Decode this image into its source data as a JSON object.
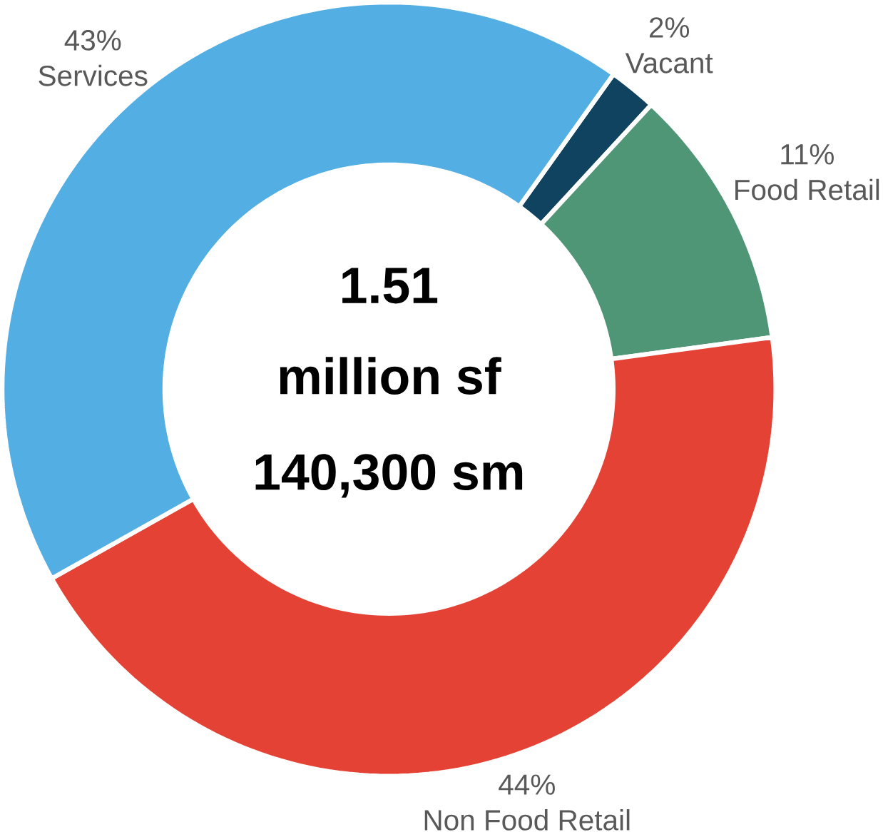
{
  "chart_data": {
    "type": "donut",
    "categories": [
      "Vacant",
      "Food Retail",
      "Non Food Retail",
      "Services"
    ],
    "values": [
      2,
      11,
      44,
      43
    ],
    "colors": [
      "#10435f",
      "#4f9677",
      "#e34234",
      "#52aee3"
    ],
    "value_labels": [
      "2%",
      "11%",
      "44%",
      "43%"
    ],
    "annotations": [
      "1.51",
      "million sf",
      "140,300 sm"
    ]
  }
}
